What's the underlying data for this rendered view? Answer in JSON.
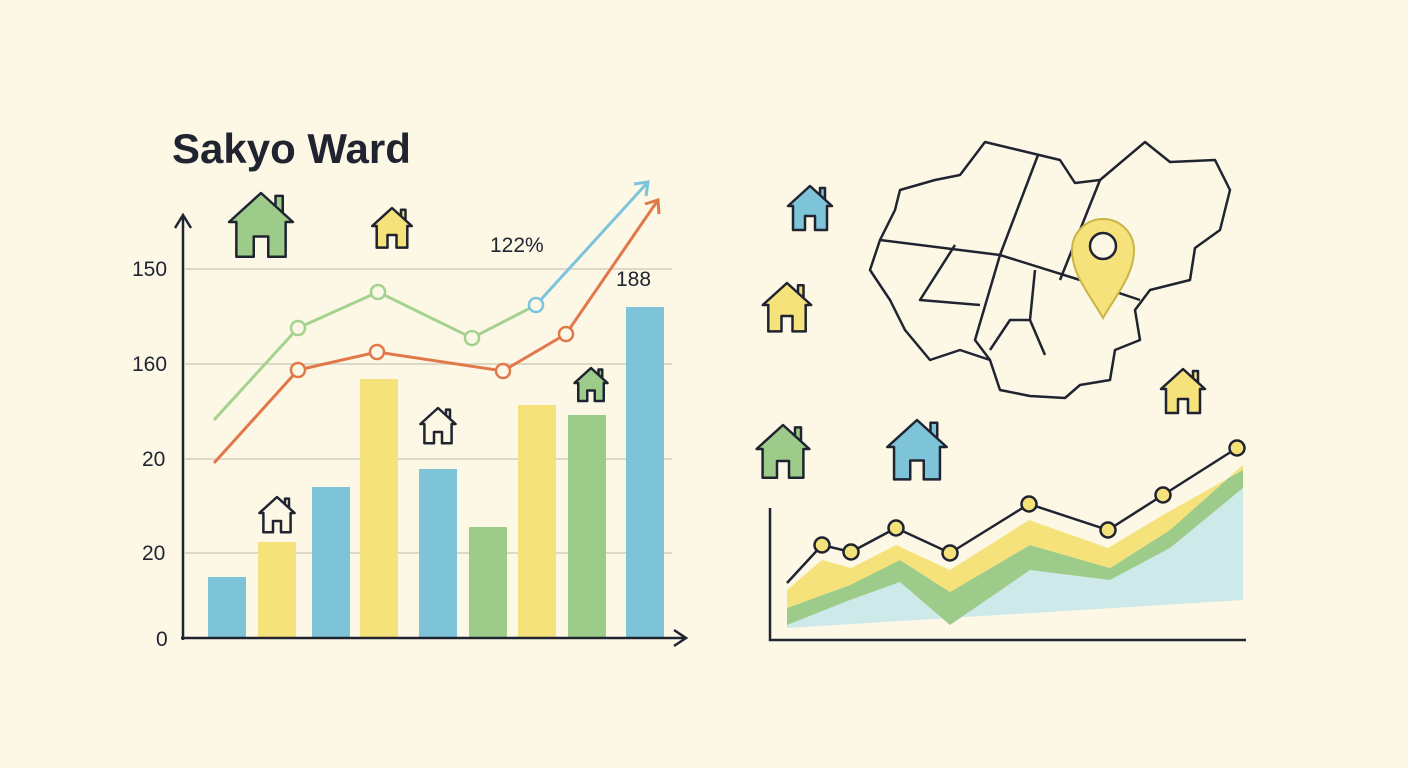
{
  "title": "Sakyo Ward",
  "axis_labels": [
    "150",
    "160",
    "20",
    "20",
    "0"
  ],
  "annotations": [
    "122%",
    "188"
  ]
}
